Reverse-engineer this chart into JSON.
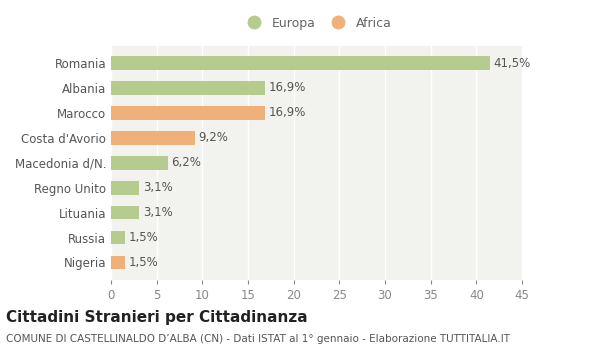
{
  "categories": [
    "Romania",
    "Albania",
    "Marocco",
    "Costa d'Avorio",
    "Macedonia d/N.",
    "Regno Unito",
    "Lituania",
    "Russia",
    "Nigeria"
  ],
  "values": [
    41.5,
    16.9,
    16.9,
    9.2,
    6.2,
    3.1,
    3.1,
    1.5,
    1.5
  ],
  "labels": [
    "41,5%",
    "16,9%",
    "16,9%",
    "9,2%",
    "6,2%",
    "3,1%",
    "3,1%",
    "1,5%",
    "1,5%"
  ],
  "colors": [
    "#b5cc8e",
    "#b5cc8e",
    "#f0b07a",
    "#f0b07a",
    "#b5cc8e",
    "#b5cc8e",
    "#b5cc8e",
    "#b5cc8e",
    "#f0b07a"
  ],
  "europa_color": "#b5cc8e",
  "africa_color": "#f0b07a",
  "xlim": [
    0,
    45
  ],
  "xticks": [
    0,
    5,
    10,
    15,
    20,
    25,
    30,
    35,
    40,
    45
  ],
  "title": "Cittadini Stranieri per Cittadinanza",
  "subtitle": "COMUNE DI CASTELLINALDO D’ALBA (CN) - Dati ISTAT al 1° gennaio - Elaborazione TUTTITALIA.IT",
  "legend_europa": "Europa",
  "legend_africa": "Africa",
  "bg_color": "#ffffff",
  "plot_bg_color": "#f2f2ee",
  "grid_color": "#ffffff",
  "bar_height": 0.55,
  "label_fontsize": 8.5,
  "title_fontsize": 11,
  "subtitle_fontsize": 7.5,
  "tick_fontsize": 8.5,
  "legend_fontsize": 9
}
